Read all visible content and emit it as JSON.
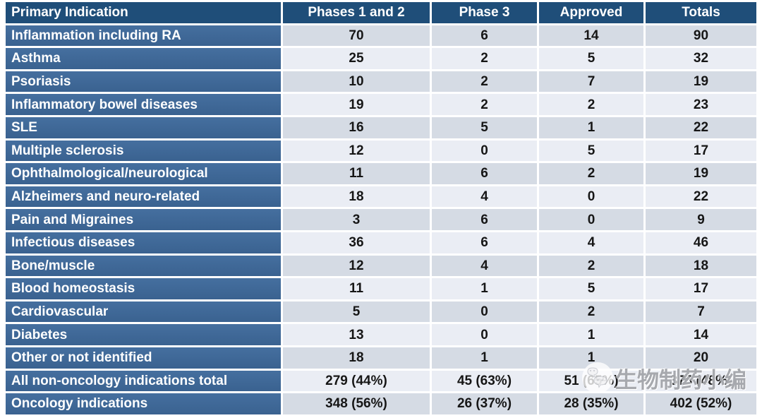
{
  "chart_data": {
    "type": "table",
    "columns": [
      "Primary Indication",
      "Phases 1 and 2",
      "Phase 3",
      "Approved",
      "Totals"
    ],
    "rows": [
      {
        "label": "Inflammation including RA",
        "values": [
          "70",
          "6",
          "14",
          "90"
        ]
      },
      {
        "label": "Asthma",
        "values": [
          "25",
          "2",
          "5",
          "32"
        ]
      },
      {
        "label": "Psoriasis",
        "values": [
          "10",
          "2",
          "7",
          "19"
        ]
      },
      {
        "label": "Inflammatory bowel diseases",
        "values": [
          "19",
          "2",
          "2",
          "23"
        ]
      },
      {
        "label": "SLE",
        "values": [
          "16",
          "5",
          "1",
          "22"
        ]
      },
      {
        "label": "Multiple sclerosis",
        "values": [
          "12",
          "0",
          "5",
          "17"
        ]
      },
      {
        "label": "Ophthalmological/neurological",
        "values": [
          "11",
          "6",
          "2",
          "19"
        ]
      },
      {
        "label": "Alzheimers and neuro-related",
        "values": [
          "18",
          "4",
          "0",
          "22"
        ]
      },
      {
        "label": "Pain and Migraines",
        "values": [
          "3",
          "6",
          "0",
          "9"
        ]
      },
      {
        "label": "Infectious diseases",
        "values": [
          "36",
          "6",
          "4",
          "46"
        ]
      },
      {
        "label": "Bone/muscle",
        "values": [
          "12",
          "4",
          "2",
          "18"
        ]
      },
      {
        "label": "Blood homeostasis",
        "values": [
          "11",
          "1",
          "5",
          "17"
        ]
      },
      {
        "label": "Cardiovascular",
        "values": [
          "5",
          "0",
          "2",
          "7"
        ]
      },
      {
        "label": "Diabetes",
        "values": [
          "13",
          "0",
          "1",
          "14"
        ]
      },
      {
        "label": "Other or not identified",
        "values": [
          "18",
          "1",
          "1",
          "20"
        ]
      },
      {
        "label": "All non-oncology indications total",
        "values": [
          "279 (44%)",
          "45 (63%)",
          "51 (65%)",
          "375 (48%)"
        ]
      },
      {
        "label": "Oncology indications",
        "values": [
          "348 (56%)",
          "26 (37%)",
          "28 (35%)",
          "402 (52%)"
        ]
      }
    ]
  },
  "watermark": {
    "text": "生物制药小编",
    "icon": "wechat-chat-bubbles-icon"
  },
  "colors": {
    "header_bg": "#1F4E79",
    "row_label_bg": "#3E6898",
    "band_dark": "#D5DBE4",
    "band_light": "#EAEDF4",
    "number_text": "#161616",
    "header_text": "#FFFFFF"
  }
}
